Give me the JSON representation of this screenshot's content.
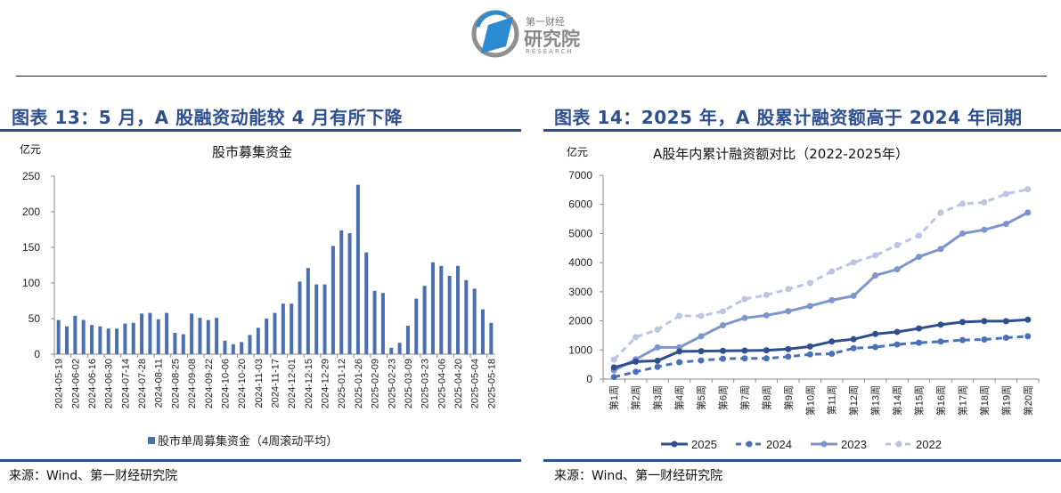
{
  "header": {
    "logo_text_top": "第一财经",
    "logo_text_main": "研究院",
    "logo_text_sub": "RESEARCH"
  },
  "colors": {
    "title": "#2e4f8e",
    "bar": "#4a6fb0",
    "s2025": "#2f4e8c",
    "s2024": "#4a70b8",
    "s2023": "#7c95cc",
    "s2022": "#b9c5e2"
  },
  "left": {
    "figure_title": "图表 13：5 月，A 股融资动能较 4 月有所下降",
    "unit": "亿元",
    "source": "来源：Wind、第一财经研究院"
  },
  "right": {
    "figure_title": "图表 14：2025 年，A 股累计融资额高于 2024 年同期",
    "unit": "亿元",
    "source": "来源：Wind、第一财经研究院"
  },
  "chart_data": [
    {
      "type": "bar",
      "title": "股市募集资金",
      "ylabel": "亿元",
      "ylim": [
        0,
        250
      ],
      "yticks": [
        "0",
        "50",
        "100",
        "150",
        "200",
        "250"
      ],
      "legend": "top-none/bottom",
      "series": [
        {
          "name": "股市单周募集资金（4周滚动平均）",
          "values": [
            48,
            39,
            54,
            48,
            41,
            39,
            36,
            36,
            43,
            44,
            57,
            58,
            49,
            58,
            30,
            28,
            57,
            51,
            48,
            51,
            19,
            14,
            17,
            27,
            37,
            50,
            58,
            71,
            71,
            102,
            121,
            98,
            98,
            152,
            174,
            170,
            238,
            143,
            89,
            86,
            9,
            16,
            40,
            78,
            96,
            129,
            124,
            110,
            124,
            104,
            92,
            63,
            44
          ]
        }
      ],
      "x_tick_labels": [
        "2024-05-19",
        "2024-06-02",
        "2024-06-16",
        "2024-06-30",
        "2024-07-14",
        "2024-07-28",
        "2024-08-11",
        "2024-08-25",
        "2024-09-08",
        "2024-09-22",
        "2024-10-06",
        "2024-10-20",
        "2024-11-03",
        "2024-11-17",
        "2024-12-01",
        "2024-12-15",
        "2024-12-29",
        "2025-01-12",
        "2025-01-26",
        "2025-02-09",
        "2025-02-23",
        "2025-03-09",
        "2025-03-23",
        "2025-04-06",
        "2025-04-20",
        "2025-05-04",
        "2025-05-18"
      ]
    },
    {
      "type": "line",
      "title": "A股年内累计融资额对比（2022-2025年）",
      "ylabel": "亿元",
      "ylim": [
        0,
        7000
      ],
      "yticks": [
        "0",
        "1000",
        "2000",
        "3000",
        "4000",
        "5000",
        "6000",
        "7000"
      ],
      "legend": "bottom",
      "categories": [
        "第1周",
        "第2周",
        "第3周",
        "第4周",
        "第5周",
        "第6周",
        "第7周",
        "第8周",
        "第9周",
        "第10周",
        "第11周",
        "第12周",
        "第13周",
        "第14周",
        "第15周",
        "第16周",
        "第17周",
        "第18周",
        "第19周",
        "第20周"
      ],
      "series": [
        {
          "name": "2025",
          "style": "solid",
          "values": [
            400,
            600,
            630,
            950,
            960,
            970,
            980,
            990,
            1030,
            1120,
            1290,
            1370,
            1550,
            1620,
            1740,
            1870,
            1960,
            1990,
            1990,
            2040
          ]
        },
        {
          "name": "2024",
          "style": "dashed",
          "values": [
            70,
            250,
            420,
            580,
            640,
            700,
            710,
            710,
            770,
            850,
            870,
            1060,
            1100,
            1190,
            1250,
            1290,
            1340,
            1360,
            1420,
            1470
          ]
        },
        {
          "name": "2023",
          "style": "solid",
          "values": [
            300,
            680,
            1090,
            1090,
            1470,
            1850,
            2100,
            2190,
            2330,
            2510,
            2710,
            2860,
            3560,
            3770,
            4200,
            4470,
            5000,
            5130,
            5330,
            5720
          ]
        },
        {
          "name": "2022",
          "style": "dashed",
          "values": [
            670,
            1440,
            1700,
            2170,
            2170,
            2330,
            2750,
            2890,
            3090,
            3300,
            3700,
            4010,
            4250,
            4600,
            4930,
            5720,
            6020,
            6070,
            6360,
            6520
          ]
        }
      ]
    }
  ]
}
